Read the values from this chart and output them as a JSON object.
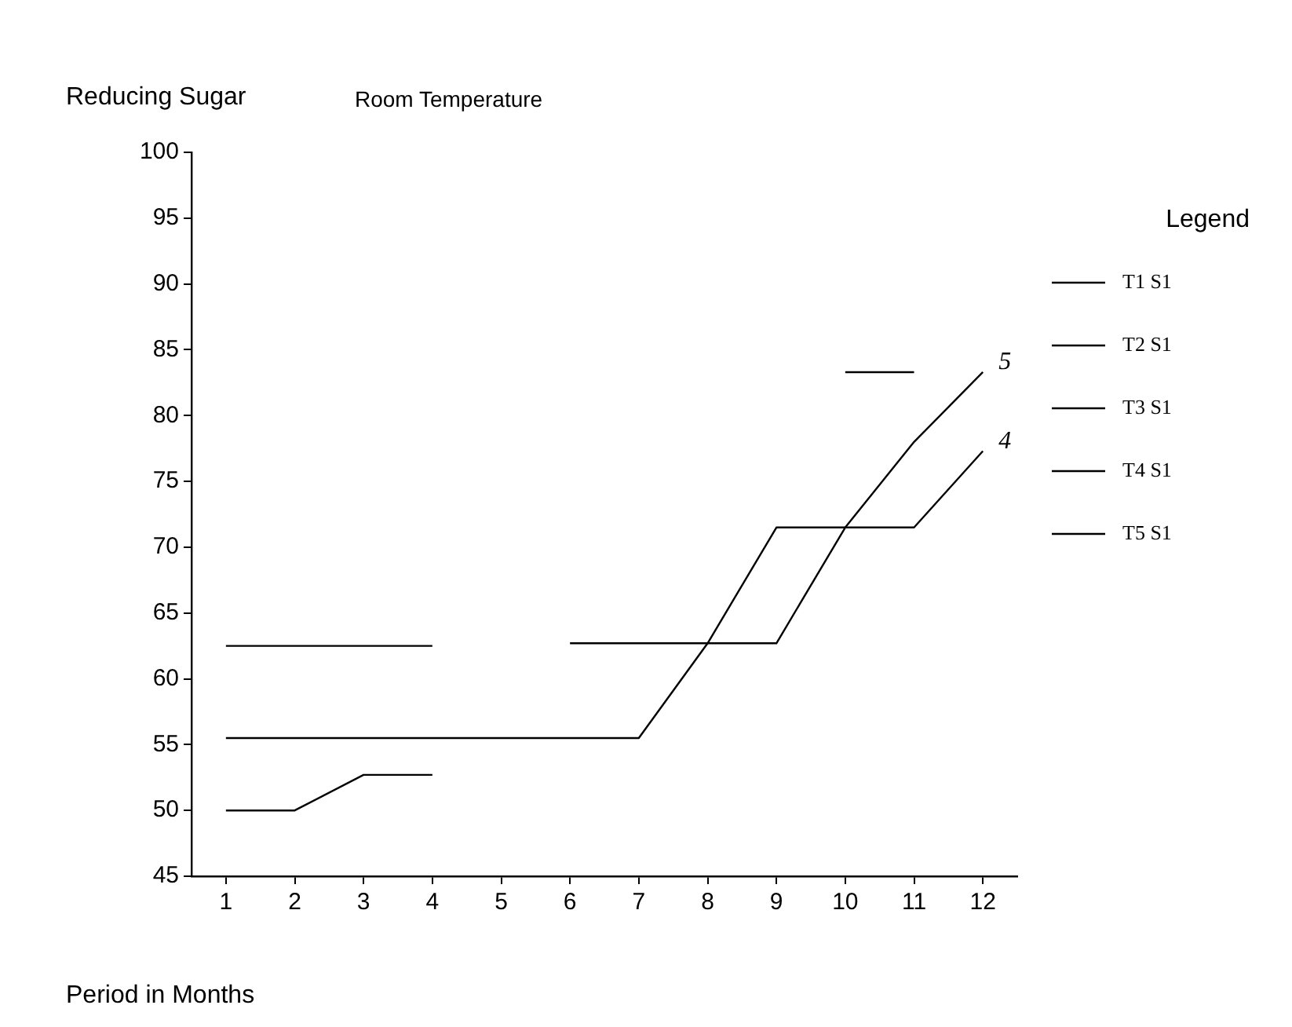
{
  "chart_data": {
    "type": "line",
    "title": "Room Temperature",
    "xlabel": "Period in Months",
    "ylabel": "Reducing Sugar",
    "legend_title": "Legend",
    "x": [
      1,
      2,
      3,
      4,
      5,
      6,
      7,
      8,
      9,
      10,
      11,
      12
    ],
    "xlim": [
      0.5,
      12.5
    ],
    "xticks": [
      1,
      2,
      3,
      4,
      5,
      6,
      7,
      8,
      9,
      10,
      11,
      12
    ],
    "ylim": [
      45,
      100
    ],
    "yticks": [
      45,
      50,
      55,
      60,
      65,
      70,
      75,
      80,
      85,
      90,
      95,
      100
    ],
    "grid": false,
    "legend": "right",
    "marker": "none",
    "line_style": "solid",
    "annotations": [
      {
        "text": "5",
        "x": 12,
        "y": 83.3
      },
      {
        "text": "4",
        "x": 12,
        "y": 77.3
      }
    ],
    "series": [
      {
        "name": "T1 S1",
        "color": "#000000",
        "values": [
          50,
          50,
          52.7,
          52.7,
          null,
          null,
          null,
          null,
          null,
          null,
          null,
          null
        ]
      },
      {
        "name": "T2 S1",
        "color": "#000000",
        "values": [
          62.5,
          62.5,
          62.5,
          62.5,
          null,
          null,
          null,
          null,
          null,
          null,
          null,
          null
        ]
      },
      {
        "name": "T3 S1",
        "color": "#000000",
        "values": [
          null,
          null,
          null,
          null,
          null,
          null,
          null,
          null,
          null,
          83.3,
          83.3,
          null
        ]
      },
      {
        "name": "T4 S1",
        "color": "#000000",
        "values": [
          55.5,
          55.5,
          55.5,
          55.5,
          55.5,
          55.5,
          55.5,
          62.7,
          71.5,
          71.5,
          71.5,
          77.3
        ]
      },
      {
        "name": "T5 S1",
        "color": "#000000",
        "values": [
          null,
          null,
          null,
          null,
          null,
          62.7,
          62.7,
          62.7,
          62.7,
          71.5,
          78,
          83.3
        ]
      }
    ]
  }
}
